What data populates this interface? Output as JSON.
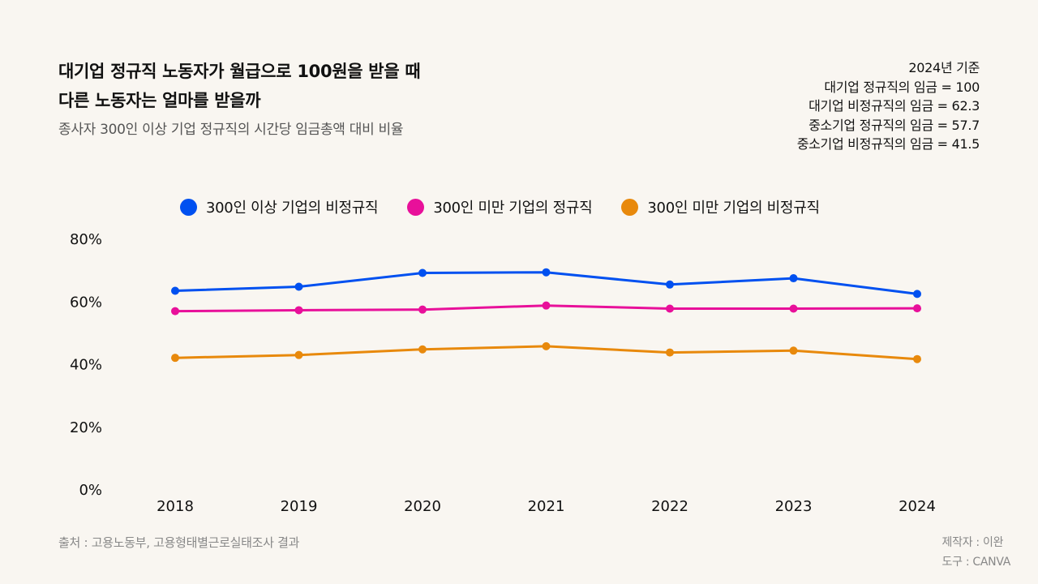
{
  "header": {
    "title_line1": "대기업 정규직 노동자가 월급으로 100원을 받을 때",
    "title_line2": "다른 노동자는 얼마를 받을까",
    "subtitle": "종사자 300인 이상 기업 정규직의 시간당 임금총액 대비 비율"
  },
  "note": {
    "lines": [
      "2024년 기준",
      "대기업 정규직의 임금 = 100",
      "대기업 비정규직의 임금 = 62.3",
      "중소기업 정규직의 임금 = 57.7",
      "중소기업 비정규직의 임금 = 41.5"
    ]
  },
  "footer": {
    "source": "출처 : 고용노동부, 고용형태별근로실태조사 결과",
    "author": "제작자 : 이완",
    "tool": "도구 : CANVA"
  },
  "chart_data": {
    "type": "line",
    "title": "대기업 정규직 노동자가 월급으로 100원을 받을 때 다른 노동자는 얼마를 받을까",
    "subtitle": "종사자 300인 이상 기업 정규직의 시간당 임금총액 대비 비율",
    "xlabel": "",
    "ylabel": "",
    "x": [
      "2018",
      "2019",
      "2020",
      "2021",
      "2022",
      "2023",
      "2024"
    ],
    "ylim": [
      0,
      80
    ],
    "yticks": [
      0,
      20,
      40,
      60,
      80
    ],
    "ytick_labels": [
      "0%",
      "20%",
      "40%",
      "60%",
      "80%"
    ],
    "grid": false,
    "legend_position": "top",
    "series": [
      {
        "name": "300인 이상 기업의 비정규직",
        "color": "#0050f0",
        "values": [
          63.3,
          64.6,
          69.0,
          69.2,
          65.3,
          67.3,
          62.3
        ]
      },
      {
        "name": "300인 미만 기업의 정규직",
        "color": "#e8109a",
        "values": [
          56.8,
          57.1,
          57.3,
          58.6,
          57.6,
          57.6,
          57.7
        ]
      },
      {
        "name": "300인 미만 기업의 비정규직",
        "color": "#e8890c",
        "values": [
          41.9,
          42.8,
          44.6,
          45.6,
          43.6,
          44.2,
          41.5
        ]
      }
    ]
  }
}
